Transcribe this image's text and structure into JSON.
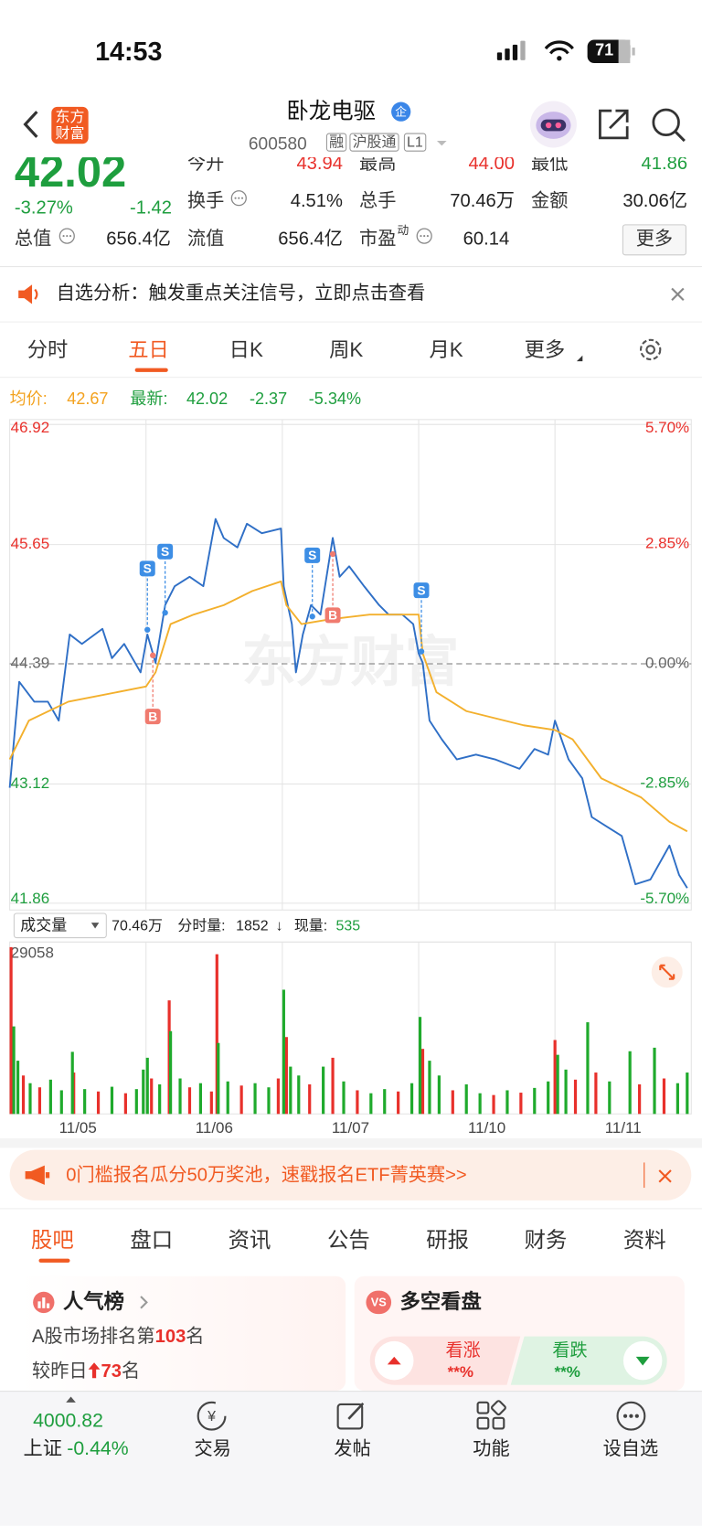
{
  "status_bar": {
    "time": "14:53",
    "battery": "71"
  },
  "header": {
    "logo": "东方财富",
    "name": "卧龙电驱",
    "badge": "企",
    "code": "600580",
    "tags": [
      "融",
      "沪股通",
      "L1"
    ]
  },
  "quote": {
    "price": "42.02",
    "change_pct": "-3.27%",
    "change": "-1.42",
    "fields": [
      {
        "label": "今开",
        "value": "43.94"
      },
      {
        "label": "最高",
        "value": "44.00"
      },
      {
        "label": "最低",
        "value": "41.86"
      },
      {
        "label": "换手",
        "value": "4.51%"
      },
      {
        "label": "总手",
        "value": "70.46万"
      },
      {
        "label": "金额",
        "value": "30.06亿"
      },
      {
        "label": "总值",
        "value": "656.4亿"
      },
      {
        "label": "流值",
        "value": "656.4亿"
      },
      {
        "label": "市盈",
        "sup": "动",
        "value": "60.14"
      }
    ],
    "more": "更多"
  },
  "notice": "自选分析：触发重点关注信号，立即点击查看",
  "period_tabs": [
    "分时",
    "五日",
    "日K",
    "周K",
    "月K",
    "更多"
  ],
  "volume_header": {
    "indicator": "成交量",
    "total": "70.46万",
    "tick_label": "分时量:",
    "tick": "1852",
    "arrow": "↓",
    "now_label": "现量:",
    "now": "535"
  },
  "chart_data": [
    {
      "type": "line",
      "legend": {
        "avg_label": "均价:",
        "avg": "42.67",
        "last_label": "最新:",
        "last": "42.02",
        "change": "-2.37",
        "pct": "-5.34%"
      },
      "watermark": "东方财富",
      "xlim": [
        0,
        5
      ],
      "ylim": [
        41.86,
        46.92
      ],
      "yticks": [
        41.86,
        43.12,
        44.39,
        45.65,
        46.92
      ],
      "baseline": 44.39,
      "y2lim": [
        -5.7,
        5.7
      ],
      "y2ticks": [
        {
          "value": -5.7,
          "label": "-5.70%"
        },
        {
          "value": -2.85,
          "label": "-2.85%"
        },
        {
          "value": 0,
          "label": "0.00%"
        },
        {
          "value": 2.85,
          "label": "2.85%"
        },
        {
          "value": 5.7,
          "label": "5.70%"
        }
      ],
      "grid": true,
      "up_color": "#e8302b",
      "down_color": "#1e9e3e",
      "flat_color": "#666666",
      "series": [
        {
          "color": "#2f6fc6",
          "x": [
            0,
            0.07,
            0.18,
            0.28,
            0.36,
            0.44,
            0.53,
            0.68,
            0.75,
            0.84,
            0.96,
            1.01,
            1.07,
            1.14,
            1.21,
            1.32,
            1.42,
            1.51,
            1.57,
            1.67,
            1.74,
            1.85,
            1.99,
            2.01,
            2.07,
            2.1,
            2.15,
            2.21,
            2.28,
            2.37,
            2.42,
            2.49,
            2.6,
            2.71,
            2.78,
            2.88,
            2.96,
            3.0,
            3.03,
            3.08,
            3.17,
            3.28,
            3.42,
            3.56,
            3.74,
            3.85,
            3.95,
            4.0,
            4.1,
            4.2,
            4.27,
            4.38,
            4.49,
            4.59,
            4.7,
            4.84,
            4.91,
            4.97
          ],
          "values": [
            43.08,
            44.2,
            43.99,
            43.99,
            43.79,
            44.7,
            44.6,
            44.76,
            44.45,
            44.6,
            44.3,
            44.7,
            44.4,
            45.01,
            45.21,
            45.31,
            45.21,
            45.92,
            45.72,
            45.62,
            45.87,
            45.77,
            45.82,
            45.21,
            44.81,
            44.3,
            44.7,
            45.01,
            44.91,
            45.72,
            45.31,
            45.42,
            45.21,
            45.01,
            44.91,
            44.91,
            44.81,
            44.5,
            44.4,
            43.79,
            43.59,
            43.38,
            43.43,
            43.38,
            43.28,
            43.49,
            43.43,
            43.79,
            43.38,
            43.18,
            42.77,
            42.67,
            42.57,
            42.06,
            42.11,
            42.47,
            42.16,
            42.02
          ]
        },
        {
          "color": "#f3b02d",
          "x": [
            0,
            0.14,
            0.43,
            1.0,
            1.07,
            1.18,
            1.35,
            1.57,
            1.78,
            1.99,
            2.03,
            2.14,
            2.35,
            2.64,
            3.0,
            3.03,
            3.13,
            3.35,
            3.77,
            4.0,
            4.13,
            4.34,
            4.63,
            4.84,
            4.97
          ],
          "values": [
            43.38,
            43.79,
            43.99,
            44.15,
            44.3,
            44.81,
            44.91,
            45.01,
            45.16,
            45.26,
            45.01,
            44.81,
            44.86,
            44.91,
            44.91,
            44.5,
            44.09,
            43.89,
            43.74,
            43.69,
            43.59,
            43.18,
            42.98,
            42.72,
            42.62
          ]
        }
      ],
      "markers": [
        {
          "label": "S",
          "x": 1.01,
          "value": 44.75,
          "side": "above",
          "color": "#3d8ee5"
        },
        {
          "label": "B",
          "x": 1.05,
          "value": 44.48,
          "side": "below",
          "color": "#f07b6f"
        },
        {
          "label": "S",
          "x": 1.14,
          "value": 44.93,
          "side": "above",
          "color": "#3d8ee5"
        },
        {
          "label": "S",
          "x": 2.22,
          "value": 44.89,
          "side": "above",
          "color": "#3d8ee5"
        },
        {
          "label": "B",
          "x": 2.37,
          "value": 45.55,
          "side": "below",
          "color": "#f07b6f"
        },
        {
          "label": "S",
          "x": 3.02,
          "value": 44.52,
          "side": "above",
          "color": "#3d8ee5"
        }
      ]
    },
    {
      "type": "bar",
      "xlim": [
        0,
        5
      ],
      "ylim": [
        0,
        29058
      ],
      "yticks": [
        29058
      ],
      "xticks": [
        {
          "value": 0.5,
          "label": "11/05"
        },
        {
          "value": 1.5,
          "label": "11/06"
        },
        {
          "value": 2.5,
          "label": "11/07"
        },
        {
          "value": 3.5,
          "label": "11/10"
        },
        {
          "value": 4.5,
          "label": "11/11"
        }
      ],
      "series": [
        {
          "color": "#e8302b",
          "x": [
            0.01,
            0.1,
            0.22,
            0.47,
            0.65,
            0.85,
            1.04,
            1.17,
            1.32,
            1.48,
            1.52,
            1.7,
            1.97,
            2.03,
            2.2,
            2.37,
            2.55,
            2.85,
            3.03,
            3.25,
            3.55,
            3.75,
            4.0,
            4.15,
            4.3,
            4.62,
            4.8
          ],
          "values": [
            28200,
            6500,
            4500,
            7000,
            3800,
            3500,
            6000,
            19200,
            4500,
            3800,
            27000,
            4800,
            6000,
            13000,
            5000,
            9500,
            4000,
            3800,
            11000,
            4000,
            3200,
            3600,
            12500,
            5800,
            7000,
            5000,
            6000
          ]
        },
        {
          "color": "#1faa2c",
          "x": [
            0.03,
            0.06,
            0.15,
            0.3,
            0.38,
            0.46,
            0.55,
            0.75,
            0.93,
            0.98,
            1.01,
            1.1,
            1.18,
            1.25,
            1.4,
            1.53,
            1.6,
            1.8,
            1.9,
            2.01,
            2.06,
            2.12,
            2.3,
            2.45,
            2.65,
            2.75,
            2.95,
            3.01,
            3.08,
            3.15,
            3.35,
            3.45,
            3.65,
            3.85,
            3.95,
            4.02,
            4.08,
            4.24,
            4.4,
            4.55,
            4.73,
            4.9,
            4.97
          ],
          "values": [
            14800,
            9000,
            5200,
            5800,
            4000,
            10500,
            4200,
            4600,
            4200,
            7500,
            9500,
            5000,
            14000,
            6000,
            5200,
            12000,
            5500,
            5200,
            4500,
            21000,
            8000,
            6500,
            8000,
            5500,
            3500,
            4200,
            5200,
            16400,
            9000,
            6500,
            5000,
            3500,
            4000,
            4400,
            5500,
            10000,
            7500,
            15500,
            5500,
            10600,
            11200,
            5200,
            7000
          ]
        }
      ]
    }
  ],
  "banner": "0门槛报名瓜分50万奖池，速戳报名ETF菁英赛>>",
  "section_tabs": [
    "股吧",
    "盘口",
    "资讯",
    "公告",
    "研报",
    "财务",
    "资料"
  ],
  "popularity": {
    "title": "人气榜",
    "rank_prefix": "A股市场排名第",
    "rank": "103",
    "rank_suffix": "名",
    "delta_prefix": "较昨日",
    "delta": "73",
    "delta_suffix": "名"
  },
  "sentiment": {
    "title": "多空看盘",
    "bull": "看涨",
    "bull_pct": "**%",
    "bear": "看跌",
    "bear_pct": "**%"
  },
  "bottom_nav": {
    "index_value": "4000.82",
    "index_name": "上证",
    "index_change": "-0.44%",
    "items": [
      "交易",
      "发帖",
      "功能",
      "设自选"
    ]
  }
}
